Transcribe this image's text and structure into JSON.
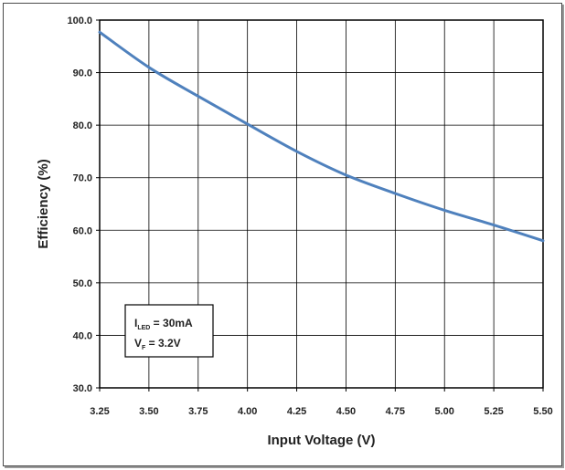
{
  "chart_data": {
    "type": "line",
    "title": "",
    "xlabel": "Input Voltage (V)",
    "ylabel": "Efficiency (%)",
    "xlim": [
      3.25,
      5.5
    ],
    "ylim": [
      30.0,
      100.0
    ],
    "x_ticks": [
      "3.25",
      "3.50",
      "3.75",
      "4.00",
      "4.25",
      "4.50",
      "4.75",
      "5.00",
      "5.25",
      "5.50"
    ],
    "y_ticks": [
      "30.0",
      "40.0",
      "50.0",
      "60.0",
      "70.0",
      "80.0",
      "90.0",
      "100.0"
    ],
    "grid": true,
    "series": [
      {
        "color": "#4f81bd",
        "x": [
          3.25,
          3.5,
          3.75,
          4.0,
          4.25,
          4.5,
          4.75,
          5.0,
          5.25,
          5.5
        ],
        "y": [
          97.7,
          91.0,
          85.5,
          80.2,
          75.0,
          70.5,
          67.0,
          63.8,
          61.0,
          58.0
        ]
      }
    ],
    "annotation": {
      "line1": {
        "symbol": "I",
        "sub": "LED",
        "text": " = 30mA"
      },
      "line2": {
        "symbol": "V",
        "sub": "F",
        "text": " = 3.2V"
      }
    }
  }
}
